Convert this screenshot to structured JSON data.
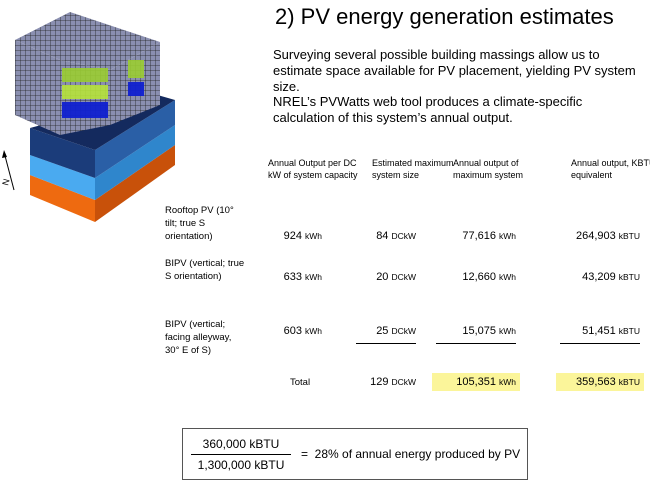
{
  "header": {
    "title": "2) PV energy generation estimates"
  },
  "paragraphs": [
    "Surveying several possible building massings allow us to estimate space available for PV placement, yielding PV system size.",
    "NREL’s PVWatts web tool produces a climate-specific calculation of this system’s annual output."
  ],
  "compass": "N",
  "table": {
    "columns": [
      "Annual Output per DC kW of system capacity",
      "Estimated maximum system size",
      "Annual output of maximum system",
      "Annual output, KBTU equivalent"
    ],
    "rows": [
      {
        "label": "Rooftop PV (10° tilt; true S orientation)",
        "cells": [
          {
            "value": "924",
            "unit": "kWh"
          },
          {
            "value": "84",
            "unit": "DCkW"
          },
          {
            "value": "77,616",
            "unit": "kWh"
          },
          {
            "value": "264,903",
            "unit": "kBTU"
          }
        ]
      },
      {
        "label": "BIPV (vertical; true S orientation)",
        "cells": [
          {
            "value": "633",
            "unit": "kWh"
          },
          {
            "value": "20",
            "unit": "DCkW"
          },
          {
            "value": "12,660",
            "unit": "kWh"
          },
          {
            "value": "43,209",
            "unit": "kBTU"
          }
        ]
      },
      {
        "label": "BIPV (vertical; facing alleyway, 30° E of S)",
        "cells": [
          {
            "value": "603",
            "unit": "kWh"
          },
          {
            "value": "25",
            "unit": "DCkW"
          },
          {
            "value": "15,075",
            "unit": "kWh"
          },
          {
            "value": "51,451",
            "unit": "kBTU"
          }
        ]
      }
    ],
    "total": {
      "label": "Total",
      "cells": [
        {
          "value": "129",
          "unit": "DCkW"
        },
        {
          "value": "105,351",
          "unit": "kWh"
        },
        {
          "value": "359,563",
          "unit": "kBTU"
        }
      ]
    }
  },
  "formula": {
    "numerator": "360,000 kBTU",
    "denominator": "1,300,000 kBTU",
    "result": "=  28% of annual energy produced by PV"
  }
}
